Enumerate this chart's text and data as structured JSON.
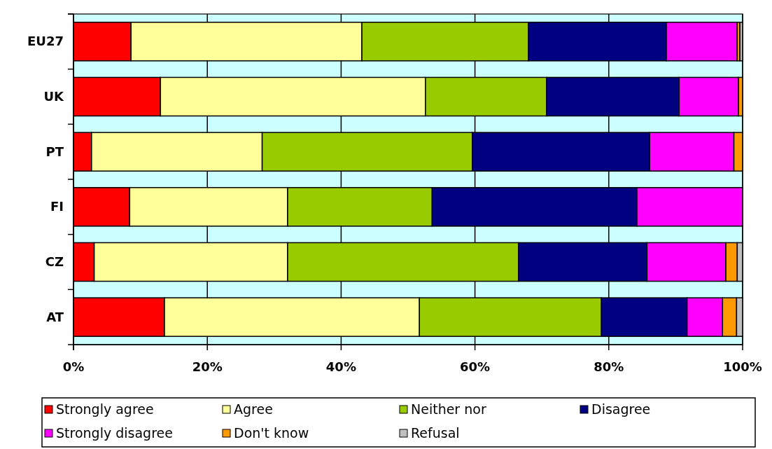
{
  "chart_data": {
    "type": "bar",
    "orientation": "horizontal",
    "stacked": true,
    "categories": [
      "EU27",
      "UK",
      "PT",
      "FI",
      "CZ",
      "AT"
    ],
    "series": [
      {
        "name": "Strongly agree",
        "color": "#ff0000",
        "values": [
          8.6,
          13.0,
          2.7,
          8.4,
          3.1,
          13.6
        ]
      },
      {
        "name": "Agree",
        "color": "#ffff99",
        "values": [
          34.5,
          39.6,
          25.5,
          23.6,
          28.9,
          38.1
        ]
      },
      {
        "name": "Neither nor",
        "color": "#99cc00",
        "values": [
          24.9,
          18.1,
          31.4,
          21.6,
          34.5,
          27.2
        ]
      },
      {
        "name": "Disagree",
        "color": "#000080",
        "values": [
          20.6,
          19.8,
          26.5,
          30.6,
          19.2,
          12.8
        ]
      },
      {
        "name": "Strongly disagree",
        "color": "#ff00ff",
        "values": [
          10.6,
          8.9,
          12.6,
          15.8,
          11.8,
          5.3
        ]
      },
      {
        "name": "Don't know",
        "color": "#ff9900",
        "values": [
          0.4,
          0.6,
          1.3,
          0,
          1.7,
          2.1
        ]
      },
      {
        "name": "Refusal",
        "color": "#c0c0c0",
        "values": [
          0.4,
          0,
          0,
          0,
          0.8,
          0.9
        ]
      }
    ],
    "xlim": [
      0,
      100
    ],
    "xticks": [
      {
        "value": 0,
        "label": "0%"
      },
      {
        "value": 20,
        "label": "20%"
      },
      {
        "value": 40,
        "label": "40%"
      },
      {
        "value": 60,
        "label": "60%"
      },
      {
        "value": 80,
        "label": "80%"
      },
      {
        "value": 100,
        "label": "100%"
      }
    ],
    "grid": "x",
    "legend": "bottom"
  }
}
